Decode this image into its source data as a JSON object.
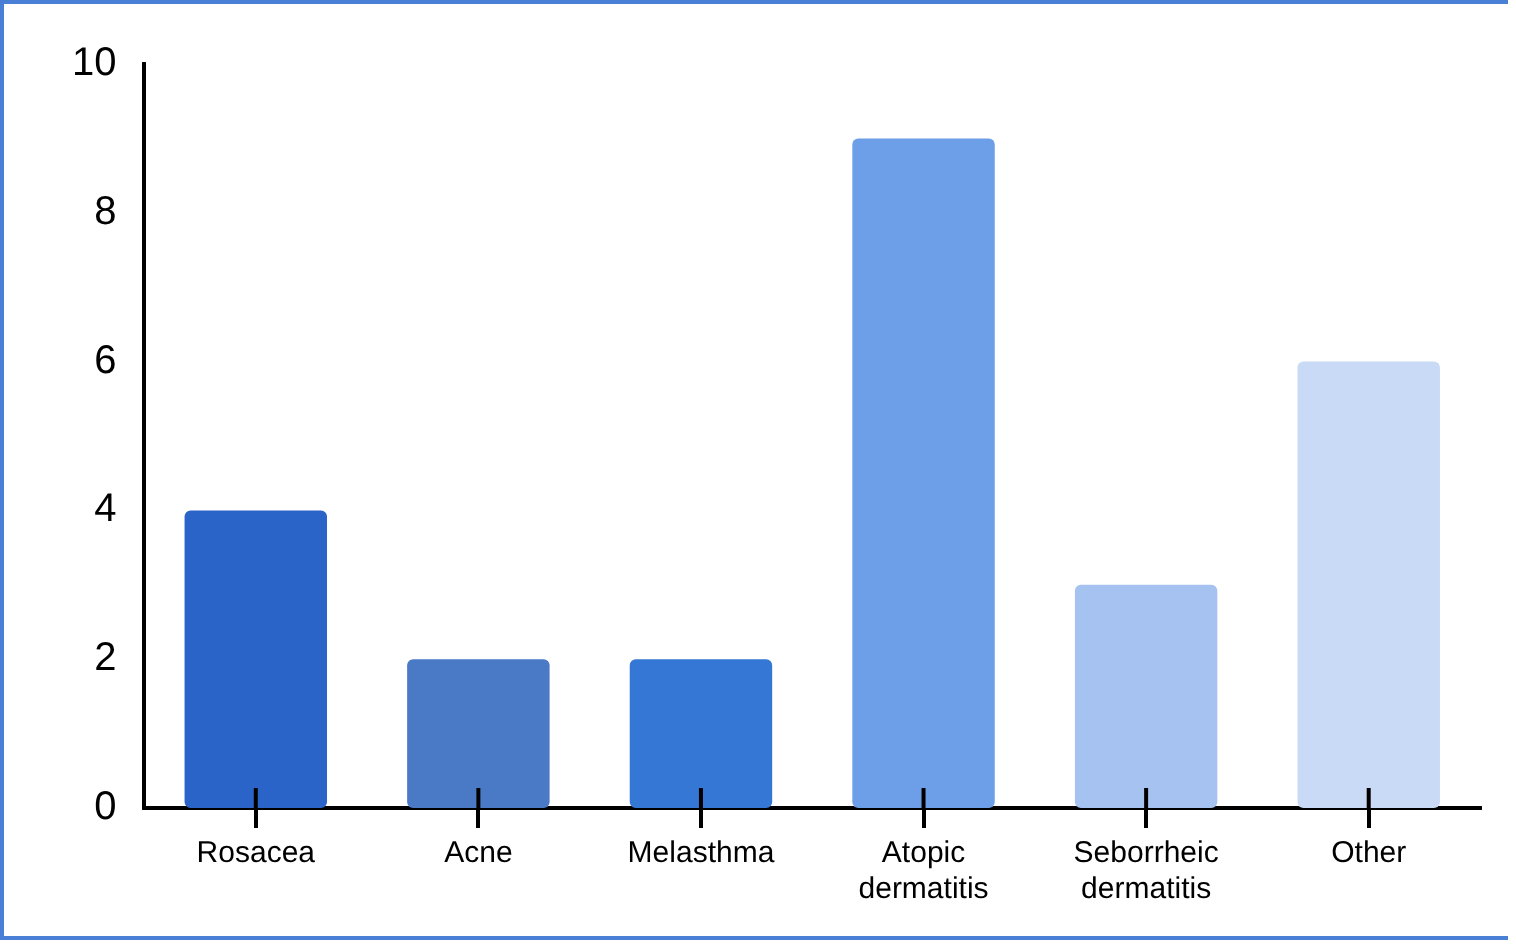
{
  "chart_data": {
    "type": "bar",
    "categories": [
      "Rosacea",
      "Acne",
      "Melasthma",
      "Atopic dermatitis",
      "Seborrheic dermatitis",
      "Other"
    ],
    "values": [
      4,
      2,
      2,
      9,
      3,
      6
    ],
    "colors": [
      "#2a64c8",
      "#4a79c6",
      "#3577d4",
      "#6c9fe8",
      "#a5c2f1",
      "#c8daf6"
    ],
    "ylim": [
      0,
      10
    ],
    "yticks": [
      0,
      2,
      4,
      6,
      8,
      10
    ],
    "grid": false,
    "legend": false
  }
}
